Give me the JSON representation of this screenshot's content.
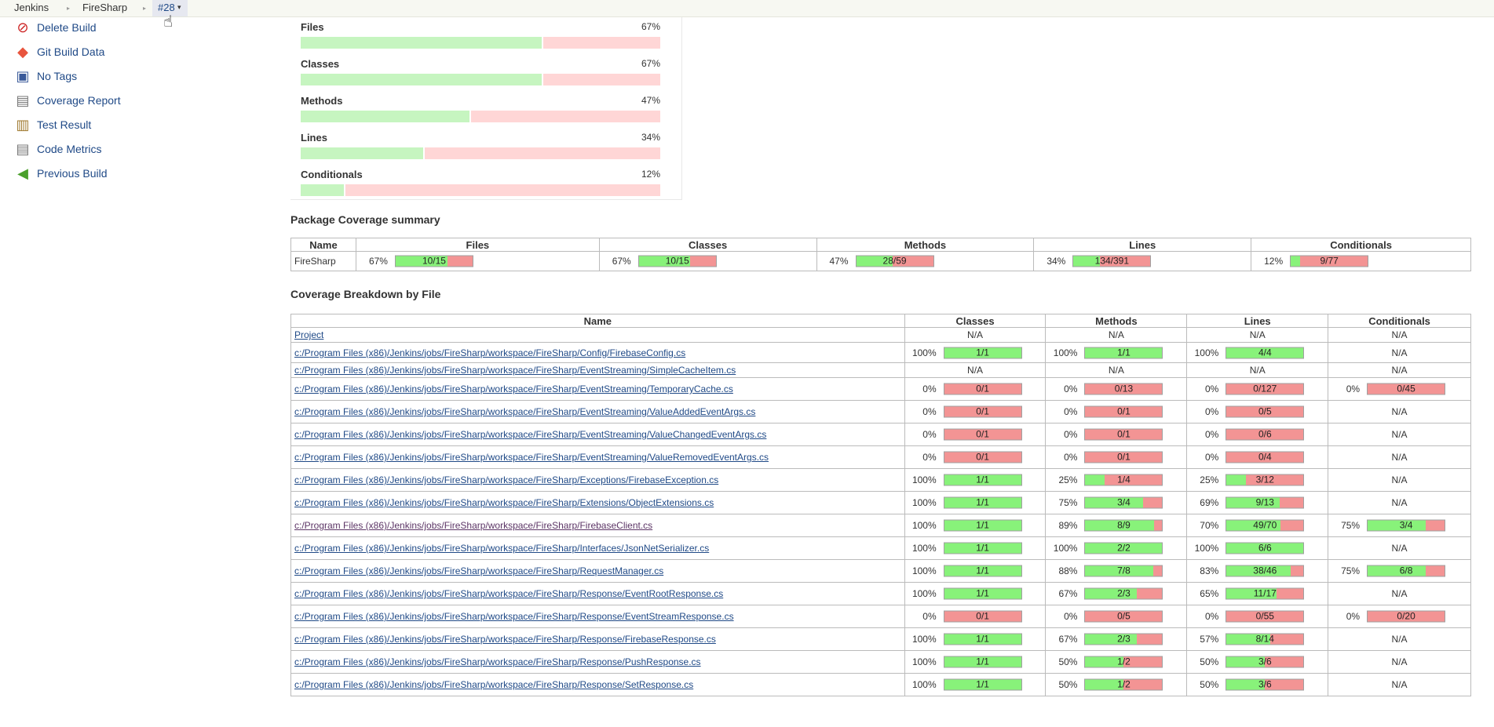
{
  "breadcrumb": {
    "items": [
      "Jenkins",
      "FireSharp"
    ],
    "current": "#28",
    "current_arrow": "▾"
  },
  "tasks": [
    {
      "label": "Delete Build",
      "icon": "delete-icon",
      "glyph": "⊘",
      "color": "#cc2222"
    },
    {
      "label": "Git Build Data",
      "icon": "git-icon",
      "glyph": "◆",
      "color": "#e8553e"
    },
    {
      "label": "No Tags",
      "icon": "save-icon",
      "glyph": "▣",
      "color": "#3a5a9a"
    },
    {
      "label": "Coverage Report",
      "icon": "report-icon",
      "glyph": "▤",
      "color": "#777777"
    },
    {
      "label": "Test Result",
      "icon": "clipboard-icon",
      "glyph": "▥",
      "color": "#a07a30"
    },
    {
      "label": "Code Metrics",
      "icon": "metrics-icon",
      "glyph": "▤",
      "color": "#777777"
    },
    {
      "label": "Previous Build",
      "icon": "arrow-left-icon",
      "glyph": "◀",
      "color": "#4aa02c"
    }
  ],
  "summary": [
    {
      "name": "Files",
      "percent": "67%",
      "ratio": 0.67
    },
    {
      "name": "Classes",
      "percent": "67%",
      "ratio": 0.67
    },
    {
      "name": "Methods",
      "percent": "47%",
      "ratio": 0.47
    },
    {
      "name": "Lines",
      "percent": "34%",
      "ratio": 0.34
    },
    {
      "name": "Conditionals",
      "percent": "12%",
      "ratio": 0.12
    }
  ],
  "package_summary": {
    "title": "Package Coverage summary",
    "headers": [
      "Name",
      "Files",
      "Classes",
      "Methods",
      "Lines",
      "Conditionals"
    ],
    "rows": [
      {
        "name": "FireSharp",
        "cells": [
          {
            "pct": "67%",
            "frac": "10/15",
            "ratio": 0.67
          },
          {
            "pct": "67%",
            "frac": "10/15",
            "ratio": 0.67
          },
          {
            "pct": "47%",
            "frac": "28/59",
            "ratio": 0.47
          },
          {
            "pct": "34%",
            "frac": "134/391",
            "ratio": 0.34
          },
          {
            "pct": "12%",
            "frac": "9/77",
            "ratio": 0.12
          }
        ]
      }
    ]
  },
  "file_breakdown": {
    "title": "Coverage Breakdown by File",
    "headers": [
      "Name",
      "Classes",
      "Methods",
      "Lines",
      "Conditionals"
    ],
    "rows": [
      {
        "name": "Project",
        "cells": [
          null,
          null,
          null,
          null
        ]
      },
      {
        "name": "c:/Program Files (x86)/Jenkins/jobs/FireSharp/workspace/FireSharp/Config/FirebaseConfig.cs",
        "cells": [
          {
            "pct": "100%",
            "frac": "1/1",
            "ratio": 1
          },
          {
            "pct": "100%",
            "frac": "1/1",
            "ratio": 1
          },
          {
            "pct": "100%",
            "frac": "4/4",
            "ratio": 1
          },
          null
        ]
      },
      {
        "name": "c:/Program Files (x86)/Jenkins/jobs/FireSharp/workspace/FireSharp/EventStreaming/SimpleCacheItem.cs",
        "cells": [
          null,
          null,
          null,
          null
        ]
      },
      {
        "name": "c:/Program Files (x86)/Jenkins/jobs/FireSharp/workspace/FireSharp/EventStreaming/TemporaryCache.cs",
        "cells": [
          {
            "pct": "0%",
            "frac": "0/1",
            "ratio": 0
          },
          {
            "pct": "0%",
            "frac": "0/13",
            "ratio": 0
          },
          {
            "pct": "0%",
            "frac": "0/127",
            "ratio": 0
          },
          {
            "pct": "0%",
            "frac": "0/45",
            "ratio": 0
          }
        ]
      },
      {
        "name": "c:/Program Files (x86)/Jenkins/jobs/FireSharp/workspace/FireSharp/EventStreaming/ValueAddedEventArgs.cs",
        "cells": [
          {
            "pct": "0%",
            "frac": "0/1",
            "ratio": 0
          },
          {
            "pct": "0%",
            "frac": "0/1",
            "ratio": 0
          },
          {
            "pct": "0%",
            "frac": "0/5",
            "ratio": 0
          },
          null
        ]
      },
      {
        "name": "c:/Program Files (x86)/Jenkins/jobs/FireSharp/workspace/FireSharp/EventStreaming/ValueChangedEventArgs.cs",
        "cells": [
          {
            "pct": "0%",
            "frac": "0/1",
            "ratio": 0
          },
          {
            "pct": "0%",
            "frac": "0/1",
            "ratio": 0
          },
          {
            "pct": "0%",
            "frac": "0/6",
            "ratio": 0
          },
          null
        ]
      },
      {
        "name": "c:/Program Files (x86)/Jenkins/jobs/FireSharp/workspace/FireSharp/EventStreaming/ValueRemovedEventArgs.cs",
        "cells": [
          {
            "pct": "0%",
            "frac": "0/1",
            "ratio": 0
          },
          {
            "pct": "0%",
            "frac": "0/1",
            "ratio": 0
          },
          {
            "pct": "0%",
            "frac": "0/4",
            "ratio": 0
          },
          null
        ]
      },
      {
        "name": "c:/Program Files (x86)/Jenkins/jobs/FireSharp/workspace/FireSharp/Exceptions/FirebaseException.cs",
        "cells": [
          {
            "pct": "100%",
            "frac": "1/1",
            "ratio": 1
          },
          {
            "pct": "25%",
            "frac": "1/4",
            "ratio": 0.25
          },
          {
            "pct": "25%",
            "frac": "3/12",
            "ratio": 0.25
          },
          null
        ]
      },
      {
        "name": "c:/Program Files (x86)/Jenkins/jobs/FireSharp/workspace/FireSharp/Extensions/ObjectExtensions.cs",
        "cells": [
          {
            "pct": "100%",
            "frac": "1/1",
            "ratio": 1
          },
          {
            "pct": "75%",
            "frac": "3/4",
            "ratio": 0.75
          },
          {
            "pct": "69%",
            "frac": "9/13",
            "ratio": 0.69
          },
          null
        ]
      },
      {
        "name": "c:/Program Files (x86)/Jenkins/jobs/FireSharp/workspace/FireSharp/FirebaseClient.cs",
        "visited": true,
        "cells": [
          {
            "pct": "100%",
            "frac": "1/1",
            "ratio": 1
          },
          {
            "pct": "89%",
            "frac": "8/9",
            "ratio": 0.89
          },
          {
            "pct": "70%",
            "frac": "49/70",
            "ratio": 0.7
          },
          {
            "pct": "75%",
            "frac": "3/4",
            "ratio": 0.75
          }
        ]
      },
      {
        "name": "c:/Program Files (x86)/Jenkins/jobs/FireSharp/workspace/FireSharp/Interfaces/JsonNetSerializer.cs",
        "cells": [
          {
            "pct": "100%",
            "frac": "1/1",
            "ratio": 1
          },
          {
            "pct": "100%",
            "frac": "2/2",
            "ratio": 1
          },
          {
            "pct": "100%",
            "frac": "6/6",
            "ratio": 1
          },
          null
        ]
      },
      {
        "name": "c:/Program Files (x86)/Jenkins/jobs/FireSharp/workspace/FireSharp/RequestManager.cs",
        "cells": [
          {
            "pct": "100%",
            "frac": "1/1",
            "ratio": 1
          },
          {
            "pct": "88%",
            "frac": "7/8",
            "ratio": 0.88
          },
          {
            "pct": "83%",
            "frac": "38/46",
            "ratio": 0.83
          },
          {
            "pct": "75%",
            "frac": "6/8",
            "ratio": 0.75
          }
        ]
      },
      {
        "name": "c:/Program Files (x86)/Jenkins/jobs/FireSharp/workspace/FireSharp/Response/EventRootResponse.cs",
        "cells": [
          {
            "pct": "100%",
            "frac": "1/1",
            "ratio": 1
          },
          {
            "pct": "67%",
            "frac": "2/3",
            "ratio": 0.67
          },
          {
            "pct": "65%",
            "frac": "11/17",
            "ratio": 0.65
          },
          null
        ]
      },
      {
        "name": "c:/Program Files (x86)/Jenkins/jobs/FireSharp/workspace/FireSharp/Response/EventStreamResponse.cs",
        "cells": [
          {
            "pct": "0%",
            "frac": "0/1",
            "ratio": 0
          },
          {
            "pct": "0%",
            "frac": "0/5",
            "ratio": 0
          },
          {
            "pct": "0%",
            "frac": "0/55",
            "ratio": 0
          },
          {
            "pct": "0%",
            "frac": "0/20",
            "ratio": 0
          }
        ]
      },
      {
        "name": "c:/Program Files (x86)/Jenkins/jobs/FireSharp/workspace/FireSharp/Response/FirebaseResponse.cs",
        "cells": [
          {
            "pct": "100%",
            "frac": "1/1",
            "ratio": 1
          },
          {
            "pct": "67%",
            "frac": "2/3",
            "ratio": 0.67
          },
          {
            "pct": "57%",
            "frac": "8/14",
            "ratio": 0.57
          },
          null
        ]
      },
      {
        "name": "c:/Program Files (x86)/Jenkins/jobs/FireSharp/workspace/FireSharp/Response/PushResponse.cs",
        "cells": [
          {
            "pct": "100%",
            "frac": "1/1",
            "ratio": 1
          },
          {
            "pct": "50%",
            "frac": "1/2",
            "ratio": 0.5
          },
          {
            "pct": "50%",
            "frac": "3/6",
            "ratio": 0.5
          },
          null
        ]
      },
      {
        "name": "c:/Program Files (x86)/Jenkins/jobs/FireSharp/workspace/FireSharp/Response/SetResponse.cs",
        "cells": [
          {
            "pct": "100%",
            "frac": "1/1",
            "ratio": 1
          },
          {
            "pct": "50%",
            "frac": "1/2",
            "ratio": 0.5
          },
          {
            "pct": "50%",
            "frac": "3/6",
            "ratio": 0.5
          },
          null
        ]
      }
    ]
  },
  "na_text": "N/A"
}
